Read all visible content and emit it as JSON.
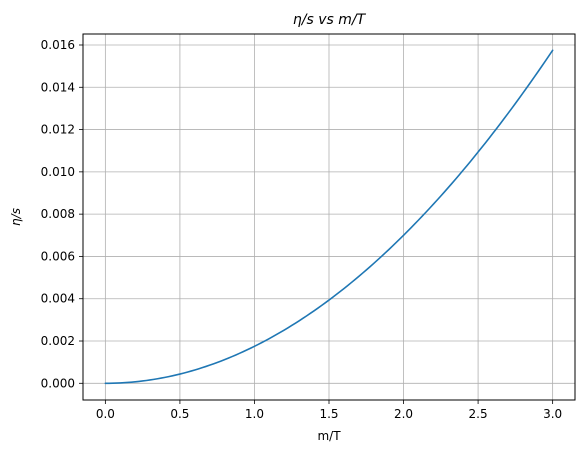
{
  "chart_data": {
    "type": "line",
    "title": "η/s vs m/T",
    "xlabel": "m/T",
    "ylabel": "η/s",
    "xlim": [
      -0.15,
      3.15
    ],
    "ylim": [
      -0.00079,
      0.01652
    ],
    "x_ticks": [
      0.0,
      0.5,
      1.0,
      1.5,
      2.0,
      2.5,
      3.0
    ],
    "x_tick_labels": [
      "0.0",
      "0.5",
      "1.0",
      "1.5",
      "2.0",
      "2.5",
      "3.0"
    ],
    "y_ticks": [
      0.0,
      0.002,
      0.004,
      0.006,
      0.008,
      0.01,
      0.012,
      0.014,
      0.016
    ],
    "y_tick_labels": [
      "0.000",
      "0.002",
      "0.004",
      "0.006",
      "0.008",
      "0.010",
      "0.012",
      "0.014",
      "0.016"
    ],
    "grid": true,
    "series": [
      {
        "color": "#1f77b4",
        "x": [
          0.0,
          0.25,
          0.5,
          0.75,
          1.0,
          1.25,
          1.5,
          1.75,
          2.0,
          2.25,
          2.5,
          2.75,
          3.0
        ],
        "y": [
          0.0,
          0.00011,
          0.00044,
          0.00098,
          0.00175,
          0.00273,
          0.00394,
          0.00536,
          0.007,
          0.00886,
          0.01094,
          0.01323,
          0.01575
        ]
      }
    ]
  }
}
